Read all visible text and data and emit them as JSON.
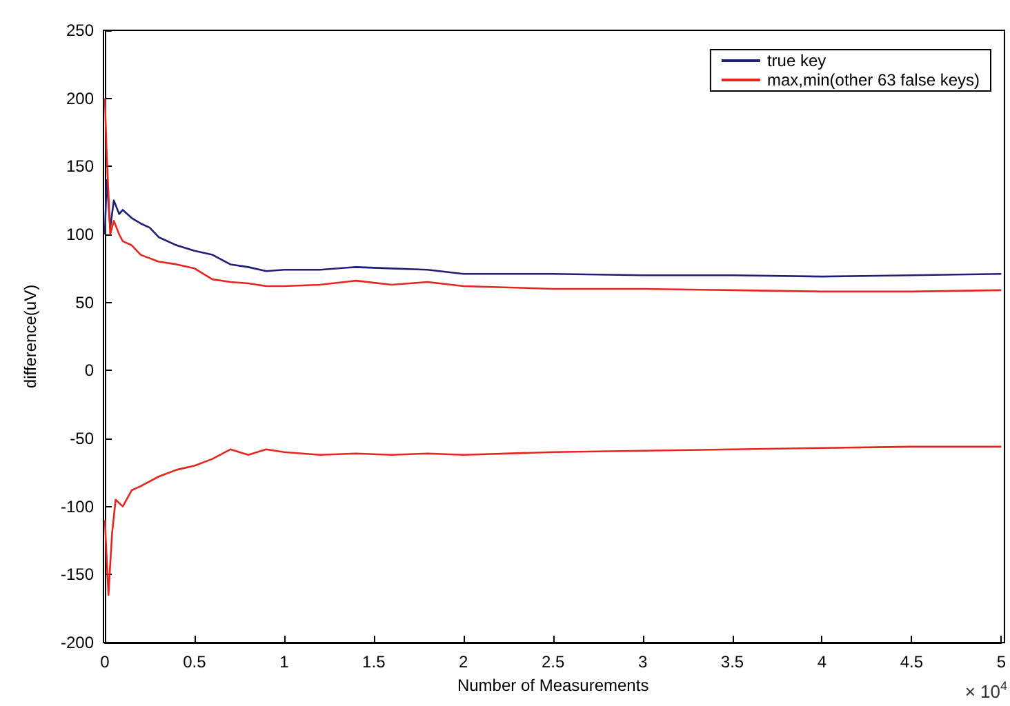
{
  "chart_data": {
    "type": "line",
    "xlabel": "Number of Measurements",
    "ylabel": "difference(uV)",
    "annotations": [
      "× 10$^{4}$"
    ],
    "xlim": [
      0,
      5
    ],
    "xticks": [
      0,
      0.5,
      1,
      1.5,
      2,
      2.5,
      3,
      3.5,
      4,
      4.5,
      5
    ],
    "ylim": [
      -200,
      250
    ],
    "yticks": [
      -200,
      -150,
      -100,
      -50,
      0,
      50,
      100,
      150,
      200,
      250
    ],
    "grid": false,
    "legend": "top right",
    "marker": "none",
    "line_style": "solid",
    "series": [
      {
        "name": "true key",
        "color": "#1f1f7a",
        "x": [
          0,
          0.01,
          0.03,
          0.05,
          0.08,
          0.1,
          0.15,
          0.2,
          0.25,
          0.3,
          0.4,
          0.5,
          0.6,
          0.7,
          0.8,
          0.9,
          1,
          1.2,
          1.4,
          1.6,
          1.8,
          2,
          2.5,
          3,
          3.5,
          4,
          4.5,
          5
        ],
        "values": [
          100,
          140,
          105,
          125,
          115,
          118,
          112,
          108,
          105,
          98,
          92,
          88,
          85,
          78,
          76,
          73,
          74,
          74,
          76,
          75,
          74,
          71,
          71,
          70,
          70,
          69,
          70,
          71
        ]
      },
      {
        "name": "max,min(other 63 false keys)",
        "color": "#e8251c",
        "x": [
          0,
          0.01,
          0.03,
          0.05,
          0.08,
          0.1,
          0.15,
          0.2,
          0.3,
          0.4,
          0.5,
          0.6,
          0.7,
          0.8,
          0.9,
          1,
          1.2,
          1.4,
          1.6,
          1.8,
          2,
          2.5,
          3,
          3.5,
          4,
          4.5,
          5
        ],
        "values": [
          200,
          160,
          100,
          110,
          100,
          95,
          92,
          85,
          80,
          78,
          75,
          67,
          65,
          64,
          62,
          62,
          63,
          66,
          63,
          65,
          62,
          60,
          60,
          59,
          58,
          58,
          59
        ]
      },
      {
        "color": "#e8251c",
        "x": [
          0,
          0.02,
          0.04,
          0.06,
          0.1,
          0.15,
          0.2,
          0.3,
          0.4,
          0.5,
          0.6,
          0.7,
          0.8,
          0.9,
          1,
          1.2,
          1.4,
          1.6,
          1.8,
          2,
          2.5,
          3,
          3.5,
          4,
          4.5,
          5
        ],
        "values": [
          -110,
          -165,
          -120,
          -95,
          -100,
          -88,
          -85,
          -78,
          -73,
          -70,
          -65,
          -58,
          -62,
          -58,
          -60,
          -62,
          -61,
          -62,
          -61,
          -62,
          -60,
          -59,
          -58,
          -57,
          -56,
          -56
        ]
      }
    ]
  }
}
